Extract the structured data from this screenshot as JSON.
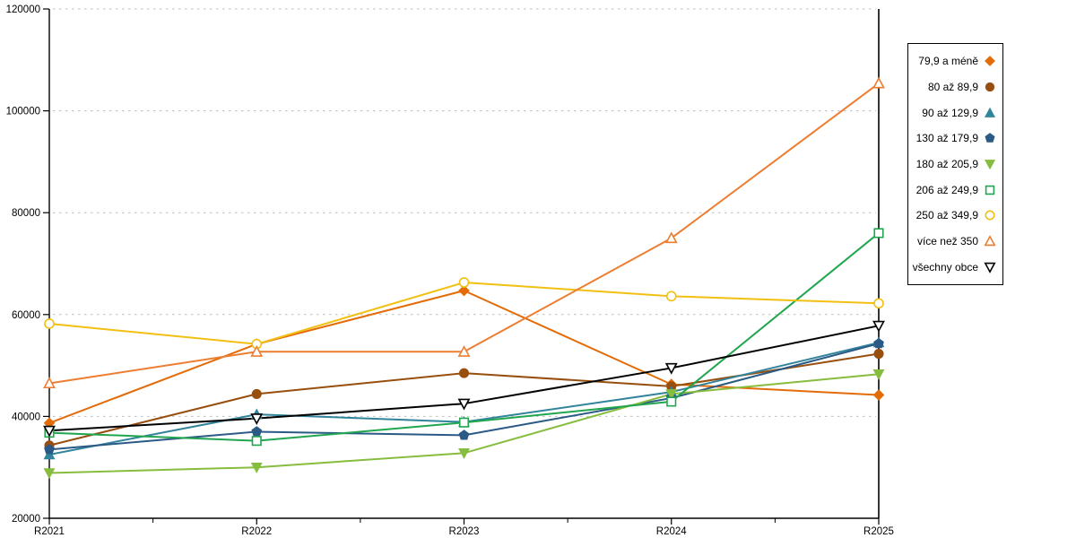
{
  "chart_data": {
    "type": "line",
    "title": "",
    "xlabel": "",
    "ylabel": "",
    "x_categories": [
      "R2021",
      "R2022",
      "R2023",
      "R2024",
      "R2025"
    ],
    "ylim": [
      20000,
      120000
    ],
    "y_ticks": [
      20000,
      40000,
      60000,
      80000,
      100000,
      120000
    ],
    "grid": "horizontal-dashed",
    "grid_color": "#bdbdbd",
    "axis_color": "#000000",
    "legend_position": "right",
    "series": [
      {
        "name": "79,9 a méně",
        "marker": "diamond",
        "filled": true,
        "color": "#e36c09",
        "values": [
          38700,
          54200,
          64700,
          46300,
          44200
        ]
      },
      {
        "name": "80 až 89,9",
        "marker": "circle",
        "filled": true,
        "color": "#974f10",
        "values": [
          34300,
          44400,
          48500,
          45900,
          52300
        ]
      },
      {
        "name": "90 až 129,9",
        "marker": "triangle-up",
        "filled": true,
        "color": "#31849b",
        "values": [
          32500,
          40400,
          38900,
          44800,
          54500
        ]
      },
      {
        "name": "130 až 179,9",
        "marker": "pentagon",
        "filled": true,
        "color": "#2a5a85",
        "values": [
          33500,
          37000,
          36300,
          43600,
          54300
        ]
      },
      {
        "name": "180 až 205,9",
        "marker": "triangle-down",
        "filled": true,
        "color": "#86bd3e",
        "values": [
          28900,
          30000,
          32800,
          44400,
          48300
        ]
      },
      {
        "name": "206 až 249,9",
        "marker": "square",
        "filled": false,
        "color": "#21a64f",
        "values": [
          36800,
          35200,
          38800,
          42900,
          76000
        ]
      },
      {
        "name": "250 až 349,9",
        "marker": "circle",
        "filled": false,
        "color": "#f2c012",
        "values": [
          58200,
          54200,
          66300,
          63600,
          62200
        ]
      },
      {
        "name": "více než 350",
        "marker": "triangle-up",
        "filled": false,
        "color": "#ed7d31",
        "values": [
          46500,
          52700,
          52700,
          75000,
          105400
        ]
      },
      {
        "name": "všechny obce",
        "marker": "triangle-down",
        "filled": false,
        "color": "#000000",
        "values": [
          37200,
          39600,
          42500,
          49500,
          57800
        ]
      }
    ]
  }
}
